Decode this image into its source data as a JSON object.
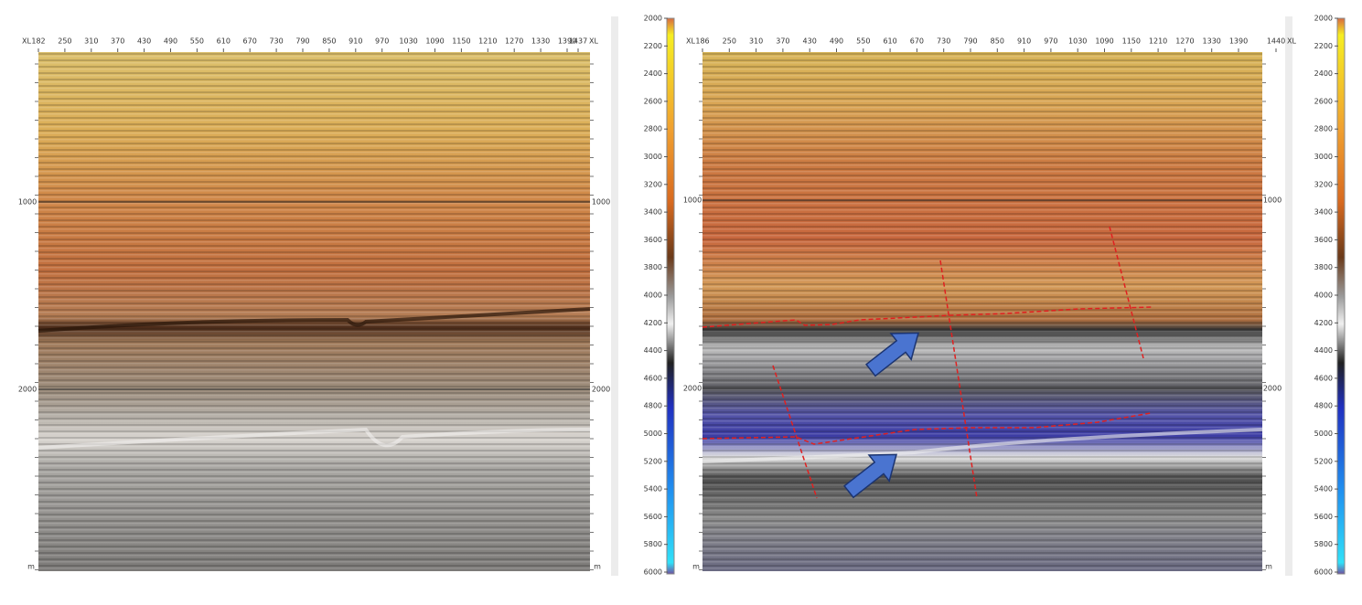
{
  "left_panel": {
    "xl_start_label": "XL",
    "xl_end_label": "XL",
    "xl_ticks": [
      182,
      250,
      310,
      370,
      430,
      490,
      550,
      610,
      670,
      730,
      790,
      850,
      910,
      970,
      1030,
      1090,
      1150,
      1210,
      1270,
      1330,
      1390,
      1437
    ],
    "depth_ticks_left": [
      1000,
      2000
    ],
    "depth_ticks_right": [
      1000,
      2000
    ],
    "unit_left": "m",
    "unit_right": "m"
  },
  "depth_colorbar_1": {
    "ticks": [
      2000,
      2200,
      2400,
      2600,
      2800,
      3000,
      3200,
      3400,
      3600,
      3800,
      4000,
      4200,
      4400,
      4600,
      4800,
      5000,
      5200,
      5400,
      5600,
      5800,
      6000
    ]
  },
  "right_panel": {
    "xl_start_label": "XL",
    "xl_end_label": "XL",
    "xl_ticks": [
      186,
      250,
      310,
      370,
      430,
      490,
      550,
      610,
      670,
      730,
      790,
      850,
      910,
      970,
      1030,
      1090,
      1150,
      1210,
      1270,
      1330,
      1390,
      1440
    ],
    "depth_ticks_left": [
      1000,
      2000
    ],
    "depth_ticks_right": [
      1000,
      2000
    ],
    "unit_left": "m",
    "unit_right": "m"
  },
  "depth_colorbar_2": {
    "ticks": [
      2000,
      2200,
      2400,
      2600,
      2800,
      3000,
      3200,
      3400,
      3600,
      3800,
      4000,
      4200,
      4400,
      4600,
      4800,
      5000,
      5200,
      5400,
      5600,
      5800,
      6000
    ]
  }
}
